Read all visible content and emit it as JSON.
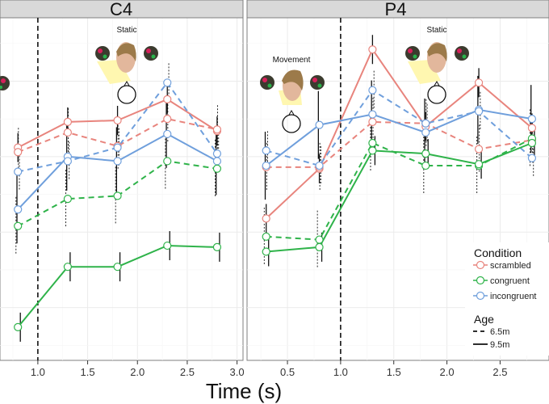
{
  "chart_data": {
    "type": "line",
    "xlabel": "Time (s)",
    "x_ticks": [
      0.5,
      1.0,
      1.5,
      2.0,
      2.5,
      3.0
    ],
    "x_tick_labels": [
      "0.5",
      "1.0",
      "1.5",
      "2.0",
      "2.5",
      "3.0"
    ],
    "vline_x": 1.0,
    "grid": true,
    "legend": {
      "placement": "right",
      "condition_title": "Condition",
      "conditions": [
        {
          "key": "scrambled",
          "label": "scrambled",
          "color": "#e8847d"
        },
        {
          "key": "congruent",
          "label": "congruent",
          "color": "#2fb34a"
        },
        {
          "key": "incongruent",
          "label": "incongruent",
          "color": "#6f9fdc"
        }
      ],
      "age_title": "Age",
      "ages": [
        {
          "key": "6.5m",
          "label": "6.5m",
          "dash": true
        },
        {
          "key": "9.5m",
          "label": "9.5m",
          "dash": false
        }
      ]
    },
    "panels": [
      {
        "title": "C4",
        "xlim": [
          0.62,
          3.06
        ],
        "annotations": [
          "Static"
        ],
        "series": [
          {
            "condition": "scrambled",
            "age": "9.5m",
            "x": [
              0.8,
              1.3,
              1.8,
              2.3,
              2.8
            ],
            "y": [
              0.06,
              0.23,
              0.24,
              0.38,
              0.17
            ]
          },
          {
            "condition": "scrambled",
            "age": "6.5m",
            "x": [
              0.8,
              1.3,
              1.8,
              2.3,
              2.8
            ],
            "y": [
              0.03,
              0.16,
              0.07,
              0.25,
              0.18
            ]
          },
          {
            "condition": "incongruent",
            "age": "9.5m",
            "x": [
              0.8,
              1.3,
              1.8,
              2.3,
              2.8
            ],
            "y": [
              -0.35,
              0.0,
              -0.03,
              0.15,
              -0.03
            ]
          },
          {
            "condition": "incongruent",
            "age": "6.5m",
            "x": [
              0.8,
              1.3,
              1.8,
              2.3,
              2.8
            ],
            "y": [
              -0.1,
              -0.03,
              0.06,
              0.49,
              0.02
            ]
          },
          {
            "condition": "congruent",
            "age": "6.5m",
            "x": [
              0.8,
              1.3,
              1.8,
              2.3,
              2.8
            ],
            "y": [
              -0.46,
              -0.28,
              -0.26,
              -0.03,
              -0.08
            ]
          },
          {
            "condition": "congruent",
            "age": "9.5m",
            "x": [
              0.8,
              1.3,
              1.8,
              2.3,
              2.8
            ],
            "y": [
              -1.13,
              -0.73,
              -0.73,
              -0.59,
              -0.6
            ]
          }
        ]
      },
      {
        "title": "P4",
        "xlim": [
          0.12,
          2.96
        ],
        "annotations": [
          "Movement",
          "Static"
        ],
        "series": [
          {
            "condition": "scrambled",
            "age": "9.5m",
            "x": [
              0.3,
              0.8,
              1.3,
              1.8,
              2.3,
              2.8
            ],
            "y": [
              -0.41,
              -0.08,
              0.71,
              0.2,
              0.49,
              0.19
            ]
          },
          {
            "condition": "scrambled",
            "age": "6.5m",
            "x": [
              0.3,
              0.8,
              1.3,
              1.8,
              2.3,
              2.8
            ],
            "y": [
              -0.07,
              -0.07,
              0.23,
              0.22,
              0.05,
              0.11
            ]
          },
          {
            "condition": "incongruent",
            "age": "9.5m",
            "x": [
              0.3,
              0.8,
              1.3,
              1.8,
              2.3,
              2.8
            ],
            "y": [
              -0.06,
              0.21,
              0.28,
              0.16,
              0.31,
              0.25
            ]
          },
          {
            "condition": "incongruent",
            "age": "6.5m",
            "x": [
              0.3,
              0.8,
              1.3,
              1.8,
              2.3,
              2.8
            ],
            "y": [
              0.04,
              -0.06,
              0.44,
              0.22,
              0.3,
              -0.01
            ]
          },
          {
            "condition": "congruent",
            "age": "6.5m",
            "x": [
              0.3,
              0.8,
              1.3,
              1.8,
              2.3,
              2.8
            ],
            "y": [
              -0.53,
              -0.55,
              0.09,
              -0.06,
              -0.06,
              0.12
            ]
          },
          {
            "condition": "congruent",
            "age": "9.5m",
            "x": [
              0.3,
              0.8,
              1.3,
              1.8,
              2.3,
              2.8
            ],
            "y": [
              -0.63,
              -0.6,
              0.04,
              0.02,
              -0.05,
              0.09
            ]
          }
        ]
      }
    ]
  }
}
